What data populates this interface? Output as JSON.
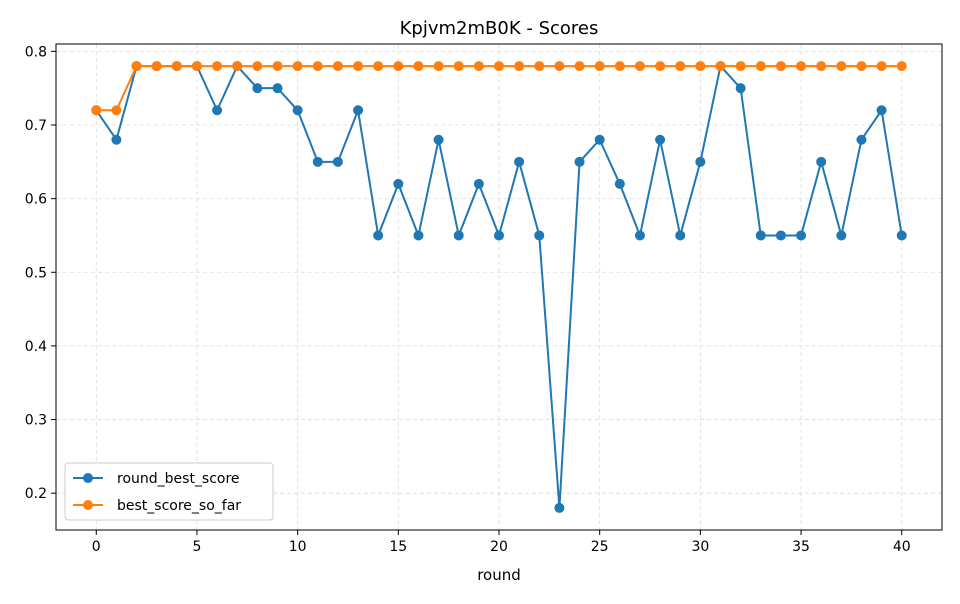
{
  "chart_data": {
    "type": "line",
    "title": "Kpjvm2mB0K - Scores",
    "xlabel": "round",
    "ylabel": "",
    "xlim": [
      -2,
      42
    ],
    "ylim": [
      0.15,
      0.81
    ],
    "xticks": [
      0,
      5,
      10,
      15,
      20,
      25,
      30,
      35,
      40
    ],
    "yticks": [
      0.2,
      0.3,
      0.4,
      0.5,
      0.6,
      0.7,
      0.8
    ],
    "grid": true,
    "legend_position": "lower-left",
    "x": [
      0,
      1,
      2,
      3,
      4,
      5,
      6,
      7,
      8,
      9,
      10,
      11,
      12,
      13,
      14,
      15,
      16,
      17,
      18,
      19,
      20,
      21,
      22,
      23,
      24,
      25,
      26,
      27,
      28,
      29,
      30,
      31,
      32,
      33,
      34,
      35,
      36,
      37,
      38,
      39,
      40
    ],
    "series": [
      {
        "name": "round_best_score",
        "color": "#1f77b4",
        "values": [
          0.72,
          0.68,
          0.78,
          0.78,
          0.78,
          0.78,
          0.72,
          0.78,
          0.75,
          0.75,
          0.72,
          0.65,
          0.65,
          0.72,
          0.55,
          0.62,
          0.55,
          0.68,
          0.55,
          0.62,
          0.55,
          0.65,
          0.55,
          0.18,
          0.65,
          0.68,
          0.62,
          0.55,
          0.68,
          0.55,
          0.65,
          0.78,
          0.75,
          0.55,
          0.55,
          0.55,
          0.65,
          0.55,
          0.68,
          0.72,
          0.55
        ]
      },
      {
        "name": "best_score_so_far",
        "color": "#ff7f0e",
        "values": [
          0.72,
          0.72,
          0.78,
          0.78,
          0.78,
          0.78,
          0.78,
          0.78,
          0.78,
          0.78,
          0.78,
          0.78,
          0.78,
          0.78,
          0.78,
          0.78,
          0.78,
          0.78,
          0.78,
          0.78,
          0.78,
          0.78,
          0.78,
          0.78,
          0.78,
          0.78,
          0.78,
          0.78,
          0.78,
          0.78,
          0.78,
          0.78,
          0.78,
          0.78,
          0.78,
          0.78,
          0.78,
          0.78,
          0.78,
          0.78,
          0.78
        ]
      }
    ]
  }
}
